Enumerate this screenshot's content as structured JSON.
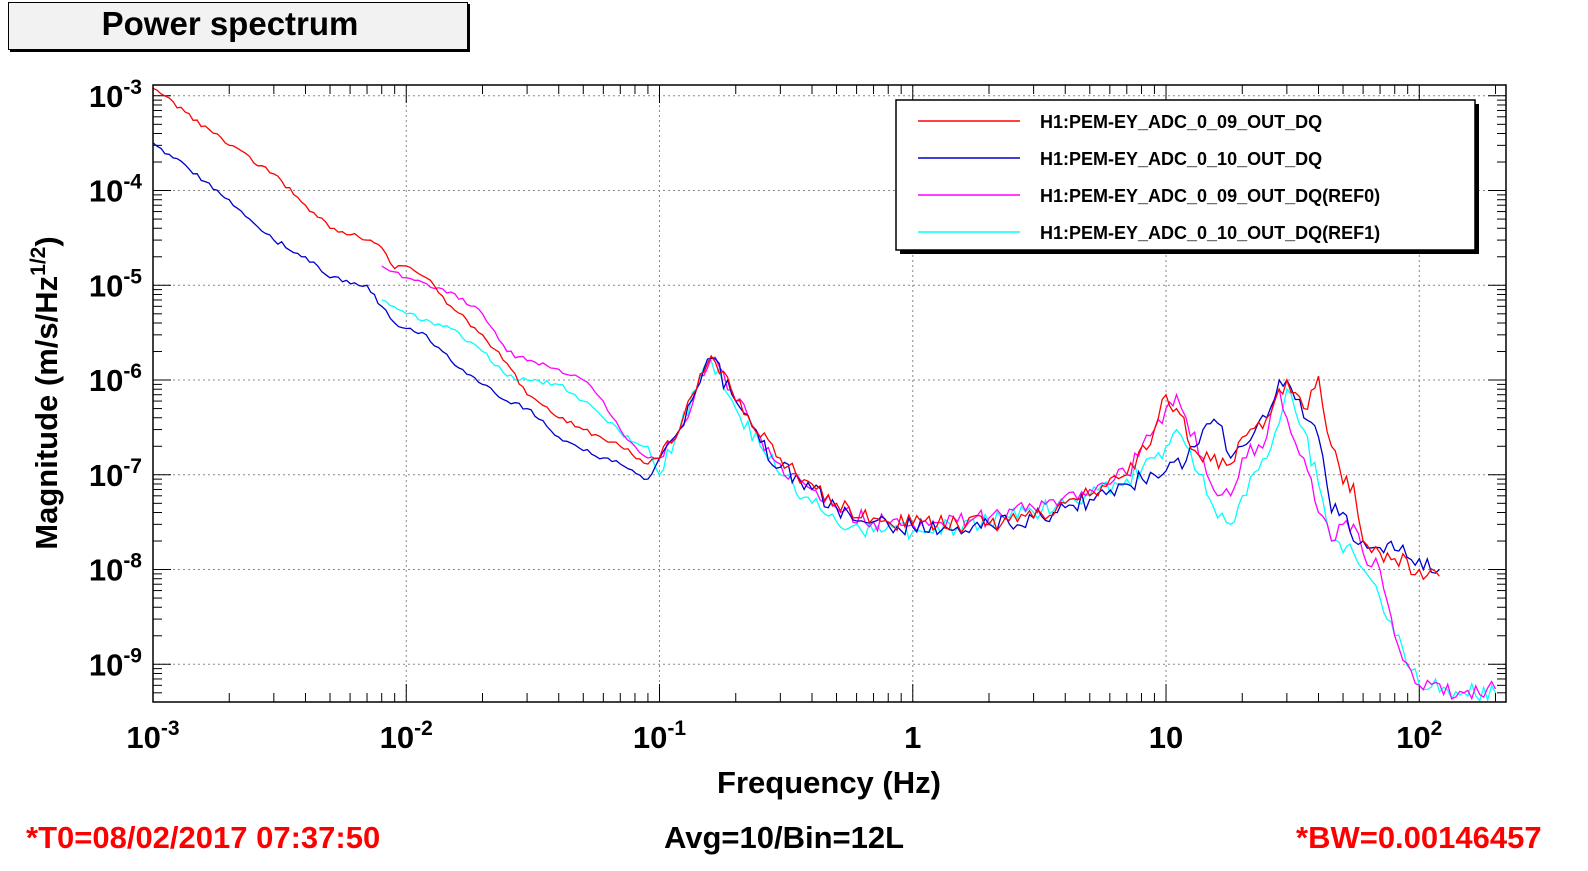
{
  "chart_data": {
    "type": "line",
    "title": "Power spectrum",
    "xlabel": "Frequency (Hz)",
    "ylabel_main": "Magnitude (m/s/Hz",
    "ylabel_sup": "1/2",
    "ylabel_close": ")",
    "xscale": "log",
    "yscale": "log",
    "xlim": [
      0.001,
      220
    ],
    "ylim": [
      4e-10,
      0.0013
    ],
    "grid": true,
    "legend_position": "top-right",
    "x_ticks": [
      {
        "value": 0.001,
        "base": "10",
        "exp": "-3"
      },
      {
        "value": 0.01,
        "base": "10",
        "exp": "-2"
      },
      {
        "value": 0.1,
        "base": "10",
        "exp": "-1"
      },
      {
        "value": 1,
        "base": "1",
        "exp": ""
      },
      {
        "value": 10,
        "base": "10",
        "exp": ""
      },
      {
        "value": 100,
        "base": "10",
        "exp": "2"
      }
    ],
    "y_ticks": [
      {
        "value": 0.001,
        "base": "10",
        "exp": "-3"
      },
      {
        "value": 0.0001,
        "base": "10",
        "exp": "-4"
      },
      {
        "value": 1e-05,
        "base": "10",
        "exp": "-5"
      },
      {
        "value": 1e-06,
        "base": "10",
        "exp": "-6"
      },
      {
        "value": 1e-07,
        "base": "10",
        "exp": "-7"
      },
      {
        "value": 1e-08,
        "base": "10",
        "exp": "-8"
      },
      {
        "value": 1e-09,
        "base": "10",
        "exp": "-9"
      }
    ],
    "series": [
      {
        "name": "H1:PEM-EY_ADC_0_09_OUT_DQ",
        "color": "#ff0000",
        "x": [
          0.001,
          0.002,
          0.003,
          0.004,
          0.005,
          0.007,
          0.008,
          0.009,
          0.01,
          0.012,
          0.015,
          0.02,
          0.025,
          0.03,
          0.04,
          0.05,
          0.07,
          0.09,
          0.1,
          0.12,
          0.14,
          0.16,
          0.2,
          0.25,
          0.3,
          0.4,
          0.5,
          0.7,
          1,
          1.5,
          2,
          3,
          4,
          5,
          7,
          9,
          10,
          11,
          13,
          15,
          18,
          20,
          25,
          30,
          35,
          40,
          45,
          50,
          55,
          60,
          70,
          80,
          100,
          120
        ],
        "y": [
          0.0012,
          0.0003,
          0.00015,
          7e-05,
          4e-05,
          3e-05,
          2.5e-05,
          1.5e-05,
          1.6e-05,
          1.2e-05,
          6e-06,
          3e-06,
          1.5e-06,
          7e-07,
          4e-07,
          3e-07,
          2e-07,
          1.3e-07,
          1.5e-07,
          3e-07,
          8e-07,
          1.8e-06,
          6e-07,
          2.5e-07,
          1.5e-07,
          8e-08,
          5e-08,
          3.5e-08,
          3e-08,
          3e-08,
          3e-08,
          3.5e-08,
          5e-08,
          6e-08,
          1e-07,
          3e-07,
          7e-07,
          5e-07,
          1.8e-07,
          1.4e-07,
          1.3e-07,
          2.5e-07,
          4e-07,
          1e-06,
          5e-07,
          1.1e-06,
          2e-07,
          8e-08,
          8e-08,
          2e-08,
          1.5e-08,
          1.3e-08,
          1e-08,
          8.5e-09
        ]
      },
      {
        "name": "H1:PEM-EY_ADC_0_10_OUT_DQ",
        "color": "#0000cc",
        "x": [
          0.001,
          0.002,
          0.003,
          0.004,
          0.005,
          0.007,
          0.008,
          0.009,
          0.01,
          0.012,
          0.015,
          0.02,
          0.025,
          0.03,
          0.04,
          0.05,
          0.07,
          0.09,
          0.1,
          0.12,
          0.14,
          0.16,
          0.2,
          0.25,
          0.3,
          0.4,
          0.5,
          0.7,
          1,
          1.5,
          2,
          3,
          4,
          5,
          7,
          9,
          10,
          12,
          14,
          16,
          18,
          20,
          25,
          28,
          30,
          35,
          40,
          45,
          50,
          55,
          60,
          70,
          80,
          100,
          120
        ],
        "y": [
          0.00032,
          8e-05,
          3e-05,
          2e-05,
          1.2e-05,
          1e-05,
          6e-06,
          4e-06,
          3.5e-06,
          3e-06,
          1.6e-06,
          9e-07,
          6e-07,
          5e-07,
          2.5e-07,
          1.8e-07,
          1.3e-07,
          9e-08,
          1.5e-07,
          3e-07,
          8e-07,
          1.7e-06,
          6e-07,
          2.2e-07,
          1.2e-07,
          7e-08,
          4.5e-08,
          3.2e-08,
          2.8e-08,
          2.8e-08,
          3e-08,
          3.5e-08,
          4.5e-08,
          5.5e-08,
          8e-08,
          1e-07,
          1.1e-07,
          1.4e-07,
          3e-07,
          3.5e-07,
          1.5e-07,
          2e-07,
          4e-07,
          1e-06,
          1e-06,
          4e-07,
          2.5e-07,
          4e-08,
          4e-08,
          2e-08,
          2e-08,
          1.7e-08,
          1.6e-08,
          1.3e-08,
          1e-08
        ]
      },
      {
        "name": "H1:PEM-EY_ADC_0_09_OUT_DQ(REF0)",
        "color": "#ff00ff",
        "x": [
          0.008,
          0.01,
          0.015,
          0.02,
          0.025,
          0.03,
          0.04,
          0.05,
          0.06,
          0.07,
          0.08,
          0.09,
          0.1,
          0.12,
          0.14,
          0.16,
          0.2,
          0.25,
          0.3,
          0.4,
          0.5,
          0.7,
          1,
          1.5,
          2,
          3,
          4,
          5,
          7,
          9,
          10,
          11,
          12,
          14,
          16,
          18,
          20,
          25,
          28,
          30,
          35,
          40,
          45,
          50,
          55,
          60,
          70,
          80,
          100,
          150,
          200
        ],
        "y": [
          1.6e-05,
          1.2e-05,
          8.5e-06,
          5e-06,
          2e-06,
          1.6e-06,
          1.3e-06,
          1e-06,
          6e-07,
          3e-07,
          2e-07,
          1.5e-07,
          1.5e-07,
          3e-07,
          8e-07,
          1.7e-06,
          6e-07,
          2.5e-07,
          1.3e-07,
          7e-08,
          4.5e-08,
          3.2e-08,
          3e-08,
          3.2e-08,
          3.5e-08,
          4.5e-08,
          6e-08,
          7e-08,
          1e-07,
          3e-07,
          5e-07,
          7e-07,
          4e-07,
          1.5e-07,
          6e-08,
          6e-08,
          1.5e-07,
          2.5e-07,
          8e-07,
          4e-07,
          1.5e-07,
          4e-08,
          2e-08,
          3e-08,
          3e-08,
          1.5e-08,
          1e-08,
          2e-09,
          6e-10,
          5e-10,
          5.5e-10
        ]
      },
      {
        "name": "H1:PEM-EY_ADC_0_10_OUT_DQ(REF1)",
        "color": "#00ffff",
        "x": [
          0.008,
          0.01,
          0.015,
          0.02,
          0.025,
          0.03,
          0.04,
          0.05,
          0.06,
          0.07,
          0.08,
          0.09,
          0.1,
          0.12,
          0.14,
          0.16,
          0.2,
          0.25,
          0.3,
          0.4,
          0.5,
          0.7,
          1,
          1.5,
          2,
          3,
          4,
          5,
          7,
          9,
          10,
          11,
          12,
          14,
          16,
          18,
          20,
          25,
          28,
          30,
          35,
          40,
          45,
          50,
          55,
          60,
          70,
          80,
          100,
          150,
          200
        ],
        "y": [
          7e-06,
          5e-06,
          3.5e-06,
          2e-06,
          1.1e-06,
          1e-06,
          9e-07,
          6e-07,
          4e-07,
          2.8e-07,
          2.2e-07,
          2e-07,
          1e-07,
          3e-07,
          8e-07,
          1.6e-06,
          5e-07,
          2e-07,
          1e-07,
          5e-08,
          3.2e-08,
          2.5e-08,
          2.5e-08,
          2.8e-08,
          3.2e-08,
          4e-08,
          5e-08,
          6e-08,
          9e-08,
          1.5e-07,
          2e-07,
          3e-07,
          2e-07,
          1e-07,
          3.5e-08,
          3e-08,
          6e-08,
          1.5e-07,
          3.5e-07,
          8e-07,
          3e-07,
          8e-08,
          2e-08,
          1.5e-08,
          1.5e-08,
          1e-08,
          5e-09,
          2e-09,
          6e-10,
          5e-10,
          5e-10
        ]
      }
    ]
  },
  "footer": {
    "t0": "*T0=08/02/2017 07:37:50",
    "avg": "Avg=10/Bin=12L",
    "bw": "*BW=0.00146457"
  }
}
